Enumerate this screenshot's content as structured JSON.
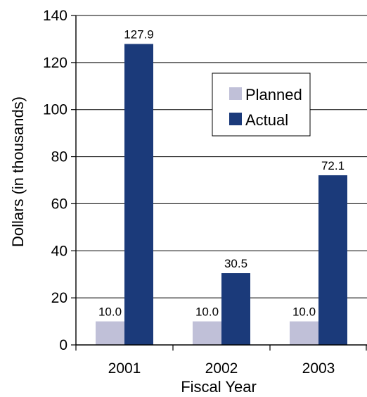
{
  "chart_data": {
    "type": "bar",
    "title": "",
    "xlabel": "Fiscal Year",
    "ylabel": "Dollars (in thousands)",
    "categories": [
      "2001",
      "2002",
      "2003"
    ],
    "series": [
      {
        "name": "Planned",
        "values": [
          10.0,
          10.0,
          10.0
        ],
        "labels": [
          "10.0",
          "10.0",
          "10.0"
        ],
        "color": "#c0c0d8"
      },
      {
        "name": "Actual",
        "values": [
          127.9,
          30.5,
          72.1
        ],
        "labels": [
          "127.9",
          "30.5",
          "72.1"
        ],
        "color": "#1b3a7a"
      }
    ],
    "ylim": [
      0,
      140
    ],
    "yticks": [
      "0",
      "20",
      "40",
      "60",
      "80",
      "100",
      "120",
      "140"
    ],
    "grid": true,
    "legend_position": "top-right"
  }
}
